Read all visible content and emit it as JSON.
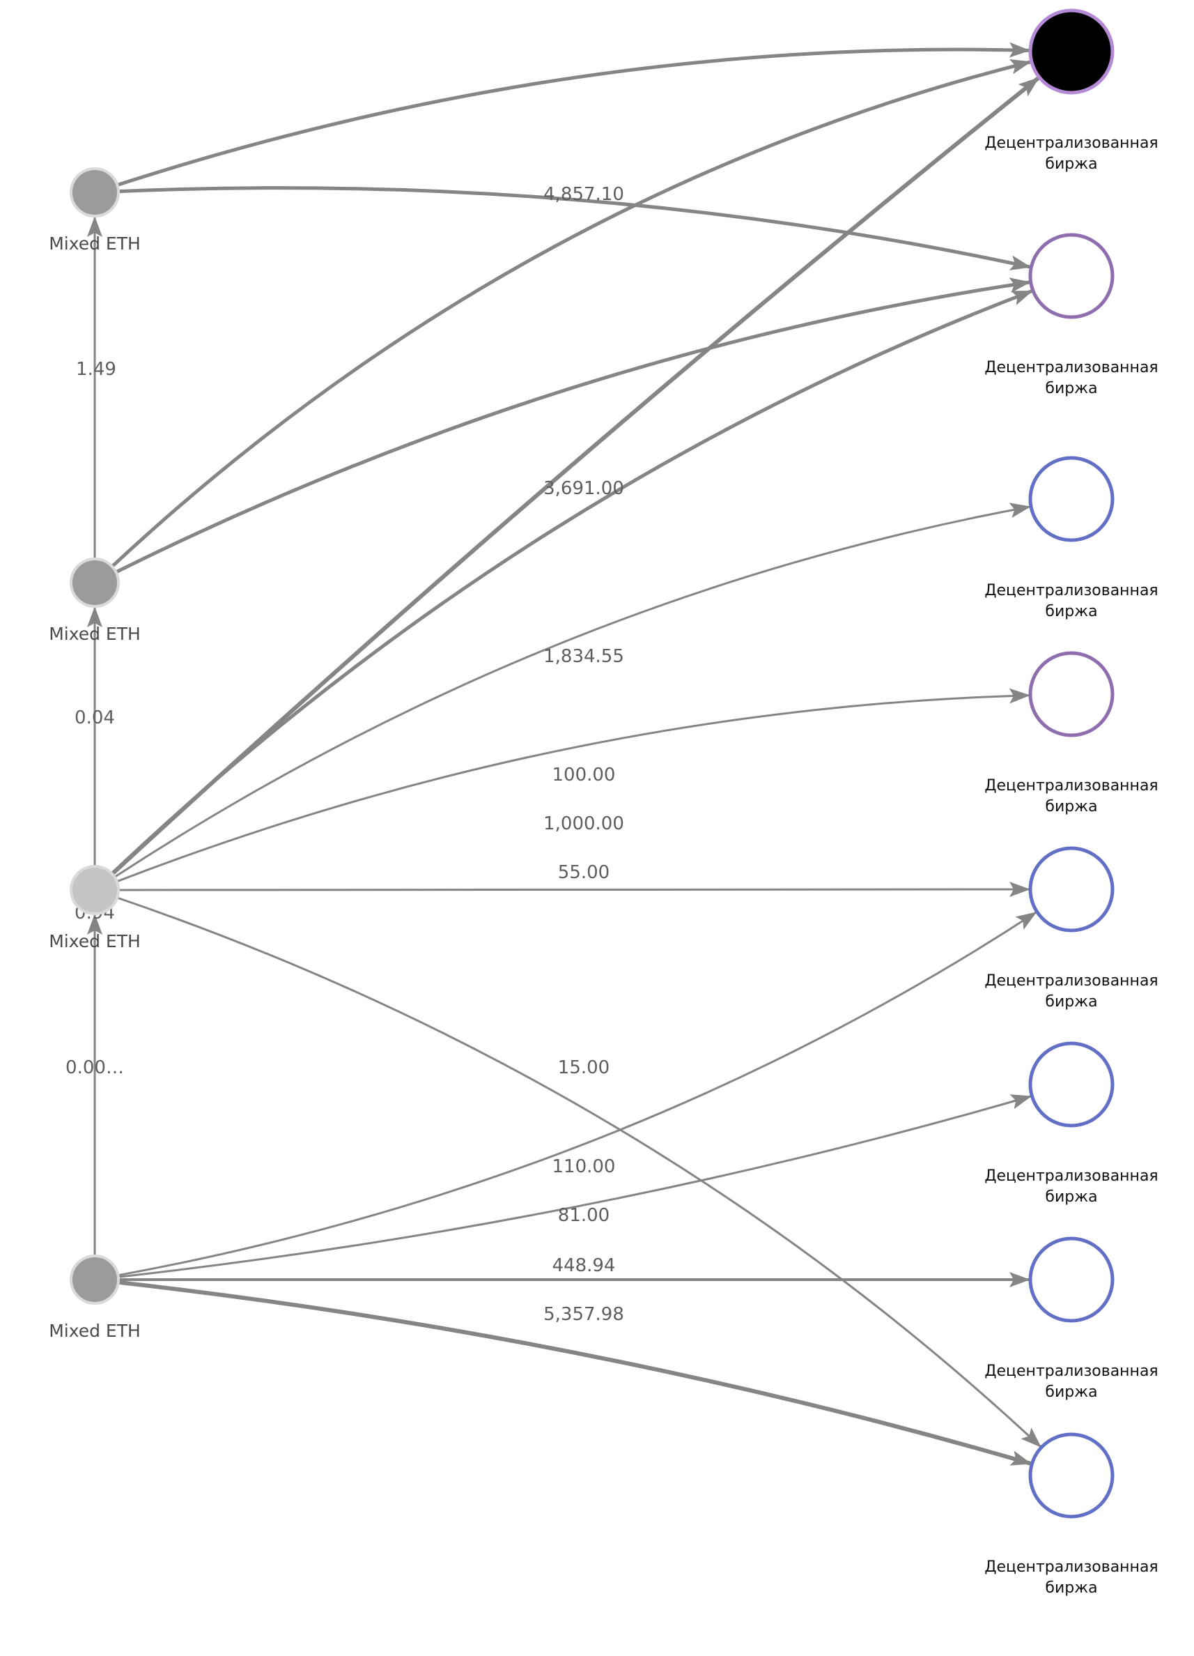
{
  "colors": {
    "edge": "#858585",
    "source_fill": "#9b9b9b",
    "source_fill_highlight": "#c4c4c4",
    "source_stroke": "#d9d9d9",
    "purple_ring": "#8f6eb0",
    "blue_ring": "#6170c6",
    "highlight_fill": "#000000",
    "highlight_ring": "#b58ad6"
  },
  "sources": [
    {
      "id": "s1",
      "label": "Mixed ETH",
      "style": "grey"
    },
    {
      "id": "s2",
      "label": "Mixed ETH",
      "style": "grey"
    },
    {
      "id": "s3",
      "label": "Mixed ETH",
      "style": "light"
    },
    {
      "id": "s4",
      "label": "Mixed ETH",
      "style": "grey"
    }
  ],
  "targets": [
    {
      "id": "t1",
      "label_line1": "Децентрализованная",
      "label_line2": "биржа",
      "ring": "purple",
      "filled": true
    },
    {
      "id": "t2",
      "label_line1": "Децентрализованная",
      "label_line2": "биржа",
      "ring": "purple",
      "filled": false
    },
    {
      "id": "t3",
      "label_line1": "Децентрализованная",
      "label_line2": "биржа",
      "ring": "blue",
      "filled": false
    },
    {
      "id": "t4",
      "label_line1": "Децентрализованная",
      "label_line2": "биржа",
      "ring": "purple",
      "filled": false
    },
    {
      "id": "t5",
      "label_line1": "Децентрализованная",
      "label_line2": "биржа",
      "ring": "blue",
      "filled": false
    },
    {
      "id": "t6",
      "label_line1": "Децентрализованная",
      "label_line2": "биржа",
      "ring": "blue",
      "filled": false
    },
    {
      "id": "t7",
      "label_line1": "Децентрализованная",
      "label_line2": "биржа",
      "ring": "blue",
      "filled": false
    },
    {
      "id": "t8",
      "label_line1": "Децентрализованная",
      "label_line2": "биржа",
      "ring": "blue",
      "filled": false
    }
  ],
  "edges": [
    {
      "from": "s1",
      "to": "t1",
      "label": ""
    },
    {
      "from": "s1",
      "to": "t2",
      "label": "4,857.10"
    },
    {
      "from": "s2",
      "to": "s1",
      "label": "1.49"
    },
    {
      "from": "s2",
      "to": "t1",
      "label": ""
    },
    {
      "from": "s2",
      "to": "t2",
      "label": "3,691.00"
    },
    {
      "from": "s3",
      "to": "s2",
      "label": "0.04"
    },
    {
      "from": "s3",
      "to": "t1",
      "label": ""
    },
    {
      "from": "s3",
      "to": "t2",
      "label": "1,834.55"
    },
    {
      "from": "s3",
      "to": "t3",
      "label": "100.00"
    },
    {
      "from": "s3",
      "to": "t4",
      "label": "1,000.00"
    },
    {
      "from": "s3",
      "to": "t5",
      "label": "55.00"
    },
    {
      "from": "s3",
      "to": "t8",
      "label": "15.00"
    },
    {
      "from": "s4",
      "to": "s3",
      "label": "0.94"
    },
    {
      "from": "s4",
      "to": "s3",
      "label": "0.00…"
    },
    {
      "from": "s4",
      "to": "t5",
      "label": "110.00"
    },
    {
      "from": "s4",
      "to": "t6",
      "label": "81.00"
    },
    {
      "from": "s4",
      "to": "t7",
      "label": "448.94"
    },
    {
      "from": "s4",
      "to": "t8",
      "label": "5,357.98"
    }
  ]
}
